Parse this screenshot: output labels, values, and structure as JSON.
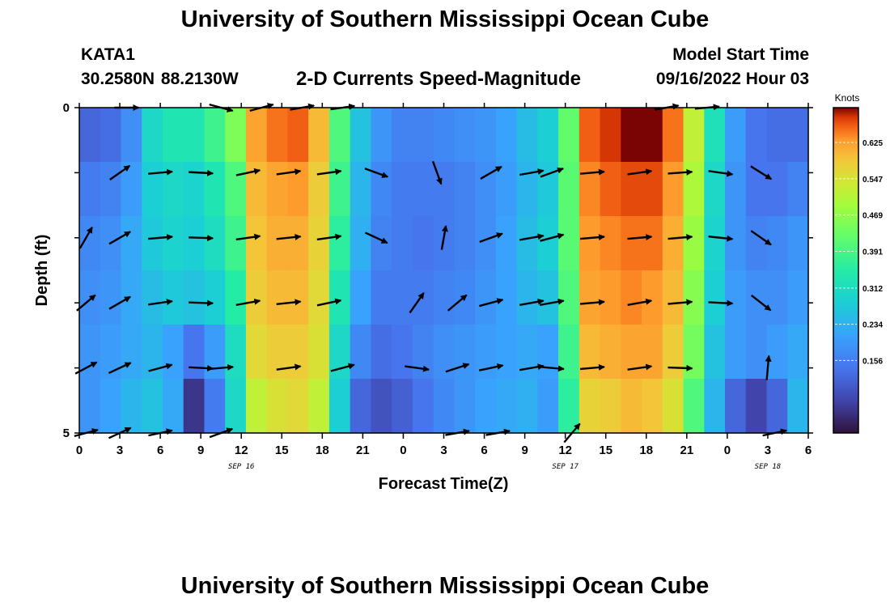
{
  "header": {
    "title": "University of Southern Mississippi Ocean Cube",
    "station": "KATA1",
    "coords": "30.2580N  88.2130W",
    "plot_title": "2-D Currents Speed-Magnitude",
    "model_start_label": "Model Start Time",
    "model_start_value": "09/16/2022 Hour 03"
  },
  "footer": {
    "title": "University of Southern Mississippi Ocean Cube"
  },
  "chart_data": {
    "type": "heatmap",
    "xlabel": "Forecast Time(Z)",
    "ylabel": "Depth (ft)",
    "x_tick_labels": [
      "0",
      "3",
      "6",
      "9",
      "12",
      "15",
      "18",
      "21",
      "0",
      "3",
      "6",
      "9",
      "12",
      "15",
      "18",
      "21",
      "0",
      "3",
      "6"
    ],
    "date_labels": [
      {
        "label": "SEP 16",
        "at_tick": 4
      },
      {
        "label": "SEP 17",
        "at_tick": 12
      },
      {
        "label": "SEP 18",
        "at_tick": 17
      }
    ],
    "y_tick_labels": [
      {
        "label": "0",
        "at_depth": 0
      },
      {
        "label": "5",
        "at_depth": 5
      }
    ],
    "ylim": [
      0,
      5
    ],
    "forecast_hours": [
      0,
      54
    ],
    "colorbar": {
      "units": "Knots",
      "range": [
        0.0,
        0.7
      ],
      "tick_labels": [
        "0.156",
        "0.234",
        "0.312",
        "0.391",
        "0.469",
        "0.547",
        "0.625"
      ],
      "tick_values": [
        0.156,
        0.234,
        0.312,
        0.391,
        0.469,
        0.547,
        0.625
      ]
    },
    "depth_layers": [
      0,
      1,
      2,
      3,
      4,
      5
    ],
    "speed_knots": [
      [
        0.12,
        0.13,
        0.18,
        0.3,
        0.33,
        0.33,
        0.38,
        0.45,
        0.62,
        0.65,
        0.66,
        0.6,
        0.4,
        0.26,
        0.19,
        0.16,
        0.16,
        0.17,
        0.18,
        0.19,
        0.21,
        0.25,
        0.28,
        0.42,
        0.66,
        0.68,
        0.7,
        0.7,
        0.65,
        0.52,
        0.32,
        0.2,
        0.14,
        0.13,
        0.13
      ],
      [
        0.15,
        0.16,
        0.2,
        0.28,
        0.3,
        0.29,
        0.33,
        0.4,
        0.6,
        0.62,
        0.63,
        0.58,
        0.38,
        0.24,
        0.17,
        0.15,
        0.15,
        0.15,
        0.16,
        0.18,
        0.2,
        0.24,
        0.27,
        0.41,
        0.64,
        0.66,
        0.67,
        0.67,
        0.63,
        0.5,
        0.3,
        0.19,
        0.14,
        0.14,
        0.16
      ],
      [
        0.17,
        0.18,
        0.22,
        0.27,
        0.29,
        0.28,
        0.31,
        0.38,
        0.59,
        0.61,
        0.61,
        0.57,
        0.36,
        0.23,
        0.16,
        0.15,
        0.14,
        0.15,
        0.16,
        0.18,
        0.21,
        0.25,
        0.28,
        0.41,
        0.63,
        0.64,
        0.65,
        0.65,
        0.61,
        0.48,
        0.29,
        0.19,
        0.16,
        0.17,
        0.19
      ],
      [
        0.18,
        0.19,
        0.22,
        0.25,
        0.27,
        0.26,
        0.28,
        0.35,
        0.58,
        0.6,
        0.6,
        0.56,
        0.33,
        0.21,
        0.15,
        0.15,
        0.15,
        0.16,
        0.17,
        0.19,
        0.21,
        0.24,
        0.26,
        0.4,
        0.62,
        0.63,
        0.64,
        0.63,
        0.6,
        0.46,
        0.28,
        0.2,
        0.18,
        0.18,
        0.2
      ],
      [
        0.19,
        0.2,
        0.22,
        0.24,
        0.21,
        0.14,
        0.2,
        0.31,
        0.56,
        0.58,
        0.58,
        0.55,
        0.3,
        0.17,
        0.13,
        0.14,
        0.16,
        0.18,
        0.19,
        0.2,
        0.21,
        0.22,
        0.21,
        0.38,
        0.6,
        0.61,
        0.62,
        0.62,
        0.58,
        0.44,
        0.26,
        0.2,
        0.18,
        0.2,
        0.22
      ],
      [
        0.19,
        0.21,
        0.24,
        0.26,
        0.22,
        0.05,
        0.15,
        0.3,
        0.52,
        0.55,
        0.56,
        0.52,
        0.28,
        0.12,
        0.09,
        0.11,
        0.14,
        0.17,
        0.19,
        0.21,
        0.22,
        0.23,
        0.2,
        0.36,
        0.57,
        0.58,
        0.6,
        0.59,
        0.55,
        0.4,
        0.24,
        0.12,
        0.07,
        0.12,
        0.24
      ]
    ],
    "vectors": [
      {
        "hour": 3.5,
        "depth": 0,
        "angle": 0
      },
      {
        "hour": 10.5,
        "depth": 0,
        "angle": 15
      },
      {
        "hour": 13.5,
        "depth": 0,
        "angle": -15
      },
      {
        "hour": 16.5,
        "depth": 0,
        "angle": -10
      },
      {
        "hour": 19.5,
        "depth": 0,
        "angle": -8
      },
      {
        "hour": 43.5,
        "depth": 0,
        "angle": -10
      },
      {
        "hour": 46.5,
        "depth": 0,
        "angle": -5
      },
      {
        "hour": 3,
        "depth": 1,
        "angle": -35
      },
      {
        "hour": 6,
        "depth": 1,
        "angle": -5
      },
      {
        "hour": 9,
        "depth": 1,
        "angle": 3
      },
      {
        "hour": 12.5,
        "depth": 1,
        "angle": -12
      },
      {
        "hour": 15.5,
        "depth": 1,
        "angle": -8
      },
      {
        "hour": 18.5,
        "depth": 1,
        "angle": -8
      },
      {
        "hour": 22,
        "depth": 1,
        "angle": 20
      },
      {
        "hour": 26.5,
        "depth": 1,
        "angle": 70
      },
      {
        "hour": 30.5,
        "depth": 1,
        "angle": -30
      },
      {
        "hour": 33.5,
        "depth": 1,
        "angle": -10
      },
      {
        "hour": 35,
        "depth": 1,
        "angle": -20
      },
      {
        "hour": 38,
        "depth": 1,
        "angle": -5
      },
      {
        "hour": 41.5,
        "depth": 1,
        "angle": -8
      },
      {
        "hour": 44.5,
        "depth": 1,
        "angle": -4
      },
      {
        "hour": 47.5,
        "depth": 1,
        "angle": 8
      },
      {
        "hour": 50.5,
        "depth": 1,
        "angle": 32
      },
      {
        "hour": 0.5,
        "depth": 2,
        "angle": -60
      },
      {
        "hour": 3,
        "depth": 2,
        "angle": -30
      },
      {
        "hour": 6,
        "depth": 2,
        "angle": -5
      },
      {
        "hour": 9,
        "depth": 2,
        "angle": 2
      },
      {
        "hour": 12.5,
        "depth": 2,
        "angle": -8
      },
      {
        "hour": 15.5,
        "depth": 2,
        "angle": -6
      },
      {
        "hour": 18.5,
        "depth": 2,
        "angle": -8
      },
      {
        "hour": 22,
        "depth": 2,
        "angle": 25
      },
      {
        "hour": 27,
        "depth": 2,
        "angle": -80
      },
      {
        "hour": 30.5,
        "depth": 2,
        "angle": -20
      },
      {
        "hour": 33.5,
        "depth": 2,
        "angle": -10
      },
      {
        "hour": 35,
        "depth": 2,
        "angle": -15
      },
      {
        "hour": 38,
        "depth": 2,
        "angle": -5
      },
      {
        "hour": 41.5,
        "depth": 2,
        "angle": -5
      },
      {
        "hour": 44.5,
        "depth": 2,
        "angle": -5
      },
      {
        "hour": 47.5,
        "depth": 2,
        "angle": 6
      },
      {
        "hour": 50.5,
        "depth": 2,
        "angle": 35
      },
      {
        "hour": 0.5,
        "depth": 3,
        "angle": -40
      },
      {
        "hour": 3,
        "depth": 3,
        "angle": -30
      },
      {
        "hour": 6,
        "depth": 3,
        "angle": -8
      },
      {
        "hour": 9,
        "depth": 3,
        "angle": 2
      },
      {
        "hour": 12.5,
        "depth": 3,
        "angle": -10
      },
      {
        "hour": 15.5,
        "depth": 3,
        "angle": -6
      },
      {
        "hour": 18.5,
        "depth": 3,
        "angle": -12
      },
      {
        "hour": 25,
        "depth": 3,
        "angle": -55
      },
      {
        "hour": 28,
        "depth": 3,
        "angle": -40
      },
      {
        "hour": 30.5,
        "depth": 3,
        "angle": -15
      },
      {
        "hour": 33.5,
        "depth": 3,
        "angle": -10
      },
      {
        "hour": 35,
        "depth": 3,
        "angle": -10
      },
      {
        "hour": 38,
        "depth": 3,
        "angle": -5
      },
      {
        "hour": 41.5,
        "depth": 3,
        "angle": -10
      },
      {
        "hour": 44.5,
        "depth": 3,
        "angle": -5
      },
      {
        "hour": 47.5,
        "depth": 3,
        "angle": 3
      },
      {
        "hour": 50.5,
        "depth": 3,
        "angle": 38
      },
      {
        "hour": 0.5,
        "depth": 4,
        "angle": -28
      },
      {
        "hour": 3,
        "depth": 4,
        "angle": -25
      },
      {
        "hour": 6,
        "depth": 4,
        "angle": -15
      },
      {
        "hour": 9,
        "depth": 4,
        "angle": 3
      },
      {
        "hour": 10.5,
        "depth": 4,
        "angle": -5
      },
      {
        "hour": 15.5,
        "depth": 4,
        "angle": -8
      },
      {
        "hour": 19.5,
        "depth": 4,
        "angle": -15
      },
      {
        "hour": 25,
        "depth": 4,
        "angle": 8
      },
      {
        "hour": 28,
        "depth": 4,
        "angle": -18
      },
      {
        "hour": 30.5,
        "depth": 4,
        "angle": -12
      },
      {
        "hour": 33.5,
        "depth": 4,
        "angle": -10
      },
      {
        "hour": 35,
        "depth": 4,
        "angle": 5
      },
      {
        "hour": 38,
        "depth": 4,
        "angle": -5
      },
      {
        "hour": 41.5,
        "depth": 4,
        "angle": -8
      },
      {
        "hour": 44.5,
        "depth": 4,
        "angle": 2
      },
      {
        "hour": 51,
        "depth": 4,
        "angle": -85
      },
      {
        "hour": 0.5,
        "depth": 5,
        "angle": -15
      },
      {
        "hour": 3,
        "depth": 5,
        "angle": -25
      },
      {
        "hour": 6,
        "depth": 5,
        "angle": -12
      },
      {
        "hour": 10.5,
        "depth": 5,
        "angle": -20
      },
      {
        "hour": 28,
        "depth": 5,
        "angle": -10
      },
      {
        "hour": 31,
        "depth": 5,
        "angle": -10
      },
      {
        "hour": 36.5,
        "depth": 5,
        "angle": -50
      },
      {
        "hour": 51.5,
        "depth": 5,
        "angle": -12
      }
    ]
  }
}
